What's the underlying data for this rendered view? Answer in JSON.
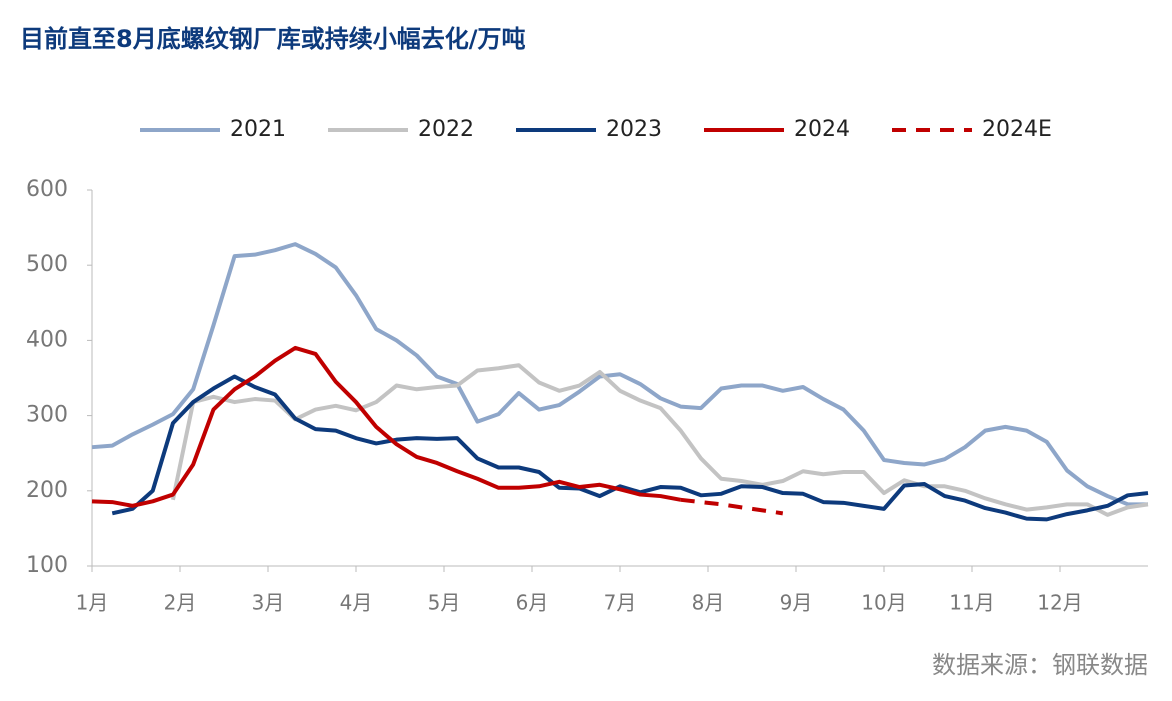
{
  "chart_data": {
    "type": "line",
    "title": "目前直至8月底螺纹钢厂库或持续小幅去化/万吨",
    "source": "数据来源：钢联数据",
    "x": [
      0,
      0.23,
      0.46,
      0.69,
      0.92,
      1.15,
      1.38,
      1.62,
      1.85,
      2.08,
      2.31,
      2.54,
      2.77,
      3,
      3.23,
      3.46,
      3.69,
      3.92,
      4.15,
      4.38,
      4.62,
      4.85,
      5.08,
      5.31,
      5.54,
      5.77,
      6,
      6.23,
      6.46,
      6.69,
      6.92,
      7.15,
      7.38,
      7.62,
      7.85,
      8.08,
      8.31,
      8.54,
      8.77,
      9,
      9.23,
      9.46,
      9.69,
      9.92,
      10.15,
      10.38,
      10.62,
      10.85,
      11.08,
      11.31,
      11.54,
      11.77,
      12
    ],
    "xlim": [
      0,
      12
    ],
    "xticks": [
      {
        "value": 0,
        "label": "1月"
      },
      {
        "value": 1,
        "label": "2月"
      },
      {
        "value": 2,
        "label": "3月"
      },
      {
        "value": 3,
        "label": "4月"
      },
      {
        "value": 4,
        "label": "5月"
      },
      {
        "value": 5,
        "label": "6月"
      },
      {
        "value": 6,
        "label": "7月"
      },
      {
        "value": 7,
        "label": "8月"
      },
      {
        "value": 8,
        "label": "9月"
      },
      {
        "value": 9,
        "label": "10月"
      },
      {
        "value": 10,
        "label": "11月"
      },
      {
        "value": 11,
        "label": "12月"
      }
    ],
    "ylim": [
      100,
      600
    ],
    "yticks": [
      100,
      200,
      300,
      400,
      500,
      600
    ],
    "grid": false,
    "legend": "top",
    "series": [
      {
        "name": "2021",
        "color": "#8ea6c9",
        "dashed": false,
        "values": [
          258,
          260,
          275,
          288,
          302,
          335,
          420,
          512,
          514,
          520,
          528,
          515,
          497,
          460,
          415,
          400,
          380,
          352,
          342,
          292,
          302,
          330,
          308,
          314,
          332,
          352,
          355,
          342,
          323,
          312,
          310,
          336,
          340,
          340,
          333,
          338,
          322,
          308,
          280,
          241,
          237,
          235,
          242,
          258,
          280,
          285,
          280,
          265,
          227,
          206,
          193,
          182,
          182
        ]
      },
      {
        "name": "2022",
        "color": "#c3c3c3",
        "dashed": false,
        "values": [
          null,
          null,
          null,
          null,
          188,
          318,
          325,
          318,
          322,
          320,
          295,
          308,
          313,
          307,
          318,
          340,
          335,
          338,
          340,
          360,
          363,
          367,
          344,
          333,
          340,
          358,
          333,
          320,
          310,
          280,
          243,
          216,
          213,
          208,
          213,
          226,
          222,
          225,
          225,
          197,
          214,
          206,
          206,
          200,
          190,
          182,
          175,
          178,
          182,
          182,
          168,
          178,
          182
        ]
      },
      {
        "name": "2023",
        "color": "#0d3a7c",
        "dashed": false,
        "values": [
          null,
          170,
          176,
          200,
          290,
          318,
          336,
          352,
          338,
          328,
          296,
          282,
          280,
          270,
          263,
          268,
          270,
          269,
          270,
          243,
          231,
          231,
          225,
          204,
          203,
          193,
          206,
          198,
          205,
          204,
          194,
          196,
          206,
          205,
          197,
          196,
          185,
          184,
          180,
          176,
          207,
          209,
          193,
          187,
          177,
          171,
          163,
          162,
          169,
          174,
          180,
          194,
          197
        ]
      },
      {
        "name": "2024",
        "color": "#c00000",
        "dashed": false,
        "values": [
          186,
          185,
          180,
          186,
          195,
          235,
          308,
          335,
          352,
          373,
          390,
          382,
          345,
          318,
          285,
          262,
          245,
          237,
          226,
          216,
          204,
          204,
          206,
          212,
          205,
          208,
          202,
          195,
          193,
          188,
          null,
          null,
          null,
          null,
          null,
          null,
          null,
          null,
          null,
          null,
          null,
          null,
          null,
          null,
          null,
          null,
          null,
          null,
          null,
          null,
          null,
          null,
          null
        ]
      },
      {
        "name": "2024E",
        "color": "#c00000",
        "dashed": true,
        "values": [
          null,
          null,
          null,
          null,
          null,
          null,
          null,
          null,
          null,
          null,
          null,
          null,
          null,
          null,
          null,
          null,
          null,
          null,
          null,
          null,
          null,
          null,
          null,
          null,
          null,
          null,
          null,
          null,
          null,
          188,
          185,
          182,
          178,
          174,
          170,
          null,
          null,
          null,
          null,
          null,
          null,
          null,
          null,
          null,
          null,
          null,
          null,
          null,
          null,
          null,
          null,
          null,
          null
        ]
      }
    ]
  }
}
